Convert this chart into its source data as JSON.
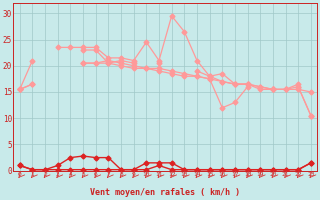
{
  "x": [
    0,
    1,
    2,
    3,
    4,
    5,
    6,
    7,
    8,
    9,
    10,
    11,
    12,
    13,
    14,
    15,
    16,
    17,
    18,
    19,
    20,
    21,
    22,
    23
  ],
  "line_rafales": [
    15.5,
    21.0,
    null,
    23.5,
    23.5,
    23.5,
    23.5,
    21.5,
    21.5,
    21.0,
    24.5,
    21.0,
    29.5,
    26.5,
    21.0,
    18.0,
    18.5,
    16.5,
    16.5,
    15.5,
    15.5,
    15.5,
    16.5,
    null
  ],
  "line_moy1": [
    15.5,
    16.5,
    null,
    null,
    null,
    23.0,
    23.0,
    20.5,
    21.0,
    20.5,
    null,
    20.5,
    null,
    null,
    19.0,
    18.0,
    17.0,
    16.5,
    16.5,
    16.0,
    15.5,
    15.5,
    16.0,
    10.5
  ],
  "line_trend1": [
    15.5,
    null,
    null,
    null,
    null,
    20.5,
    20.5,
    20.5,
    20.0,
    19.5,
    19.5,
    19.0,
    18.5,
    18.0,
    18.0,
    17.5,
    17.0,
    16.5,
    16.5,
    16.0,
    15.5,
    15.5,
    15.5,
    15.0
  ],
  "line_moy2": [
    15.5,
    16.5,
    null,
    null,
    null,
    20.5,
    20.5,
    21.0,
    20.5,
    20.0,
    19.5,
    19.5,
    19.0,
    18.5,
    18.0,
    17.5,
    12.0,
    13.0,
    16.0,
    null,
    15.5,
    null,
    16.0,
    10.5
  ],
  "line_bot_arc": [
    1.0,
    0.2,
    0.2,
    1.0,
    2.5,
    2.8,
    2.5,
    2.5,
    0.2,
    0.2,
    1.5,
    1.5,
    1.5,
    0.2,
    0.2,
    0.2,
    0.2,
    0.2,
    0.2,
    0.2,
    0.2,
    0.2,
    0.2,
    1.5
  ],
  "line_bot_base": [
    1.0,
    0.2,
    0.2,
    0.2,
    0.2,
    0.2,
    0.2,
    0.2,
    0.2,
    0.2,
    0.2,
    1.0,
    0.2,
    0.2,
    0.2,
    0.2,
    0.2,
    0.2,
    0.2,
    0.2,
    0.2,
    0.2,
    0.2,
    1.5
  ],
  "bg_color": "#c8eaea",
  "grid_color": "#a0c8c8",
  "xlabel": "Vent moyen/en rafales ( km/h )",
  "ylim": [
    0,
    32
  ],
  "xlim": [
    -0.5,
    23.5
  ],
  "yticks": [
    0,
    5,
    10,
    15,
    20,
    25,
    30
  ],
  "xticks": [
    0,
    1,
    2,
    3,
    4,
    5,
    6,
    7,
    8,
    9,
    10,
    11,
    12,
    13,
    14,
    15,
    16,
    17,
    18,
    19,
    20,
    21,
    22,
    23
  ],
  "arrow_color": "#dd3333",
  "top_line_color": "#ff9999",
  "bot_line_color": "#dd2222",
  "tick_color": "#cc2222",
  "xlabel_color": "#cc2222"
}
